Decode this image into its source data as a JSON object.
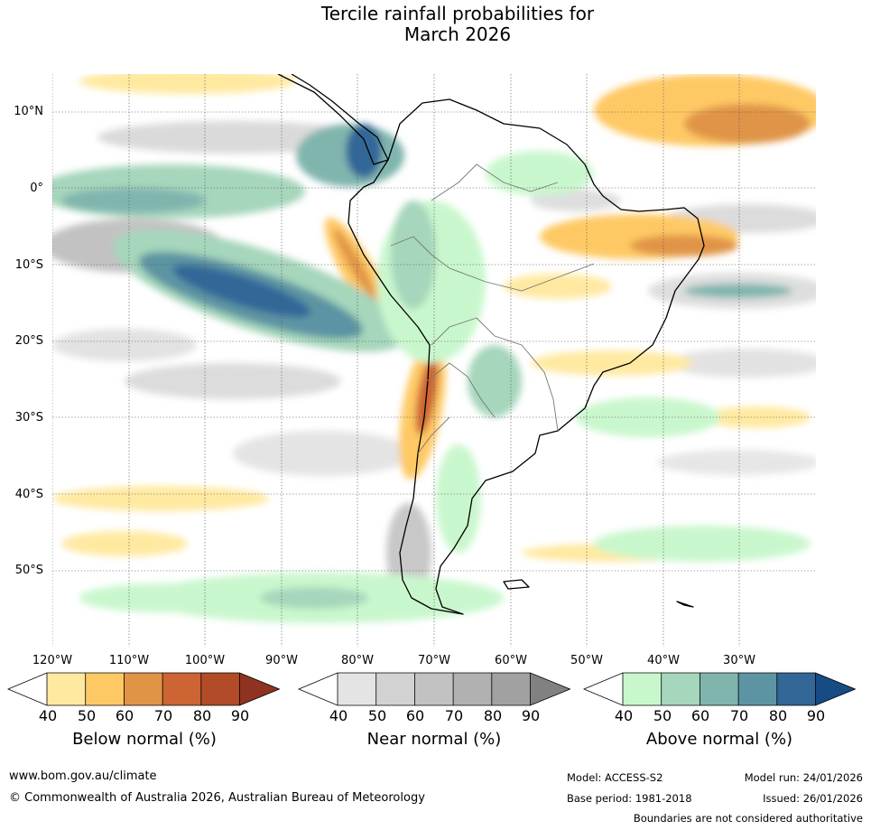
{
  "title": {
    "line1": "Tercile rainfall probabilities for",
    "line2": "March 2026"
  },
  "map": {
    "region": "South America and surrounding oceans",
    "lat_labels": [
      "10°N",
      "0°",
      "10°S",
      "20°S",
      "30°S",
      "40°S",
      "50°S"
    ],
    "lon_labels": [
      "120°W",
      "110°W",
      "100°W",
      "90°W",
      "80°W",
      "70°W",
      "60°W",
      "50°W",
      "40°W",
      "30°W"
    ]
  },
  "colorbars": [
    {
      "id": "below",
      "title": "Below normal (%)",
      "ticks": [
        "40",
        "50",
        "60",
        "70",
        "80",
        "90"
      ],
      "colors": [
        "#ffffff",
        "#ffe9a1",
        "#fec965",
        "#e09446",
        "#cd6433",
        "#b14b28",
        "#8f3320"
      ]
    },
    {
      "id": "near",
      "title": "Near normal (%)",
      "ticks": [
        "40",
        "50",
        "60",
        "70",
        "80",
        "90"
      ],
      "colors": [
        "#ffffff",
        "#e4e4e4",
        "#d2d2d2",
        "#c2c2c2",
        "#b1b1b1",
        "#a1a1a1",
        "#818181"
      ]
    },
    {
      "id": "above",
      "title": "Above normal (%)",
      "ticks": [
        "40",
        "50",
        "60",
        "70",
        "80",
        "90"
      ],
      "colors": [
        "#ffffff",
        "#c9f7cd",
        "#a6d6bb",
        "#80b5ae",
        "#5d94a3",
        "#326798",
        "#164b84"
      ]
    }
  ],
  "footer": {
    "website": "www.bom.gov.au/climate",
    "copyright": "© Commonwealth of Australia 2026, Australian Bureau of Meteorology",
    "model": "Model: ACCESS-S2",
    "base_period": "Base period: 1981-2018",
    "model_run": "Model run: 24/01/2026",
    "issued": "Issued: 26/01/2026",
    "disclaimer": "Boundaries are not considered authoritative"
  }
}
